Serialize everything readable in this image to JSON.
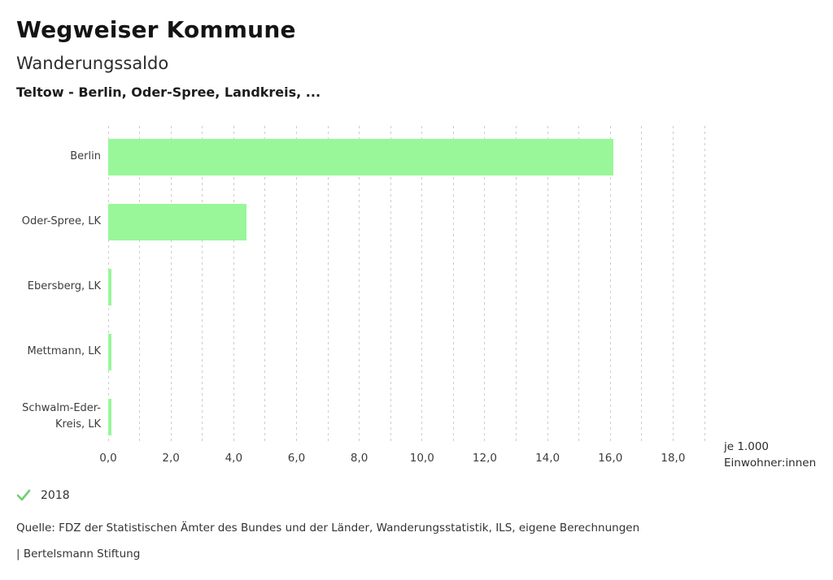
{
  "header": {
    "title": "Wegweiser Kommune",
    "subtitle": "Wanderungssaldo",
    "context": "Teltow - Berlin, Oder-Spree, Landkreis, ..."
  },
  "chart_data": {
    "type": "bar",
    "orientation": "horizontal",
    "title": "Wanderungssaldo",
    "subtitle": "Teltow - Berlin, Oder-Spree, Landkreis, ...",
    "categories": [
      "Berlin",
      "Oder-Spree, LK",
      "Ebersberg, LK",
      "Mettmann, LK",
      "Schwalm-Eder-Kreis, LK"
    ],
    "values": [
      16.1,
      4.4,
      0.1,
      0.1,
      0.1
    ],
    "series_name": "2018",
    "xlabel_lines": [
      "je 1.000",
      "Einwohner:innen"
    ],
    "xlim": [
      0,
      19
    ],
    "grid_interval": 1,
    "grid_style": "dashed-vertical",
    "xticks": [
      {
        "value": 0,
        "label": "0,0"
      },
      {
        "value": 2,
        "label": "2,0"
      },
      {
        "value": 4,
        "label": "4,0"
      },
      {
        "value": 6,
        "label": "6,0"
      },
      {
        "value": 8,
        "label": "8,0"
      },
      {
        "value": 10,
        "label": "10,0"
      },
      {
        "value": 12,
        "label": "12,0"
      },
      {
        "value": 14,
        "label": "14,0"
      },
      {
        "value": 16,
        "label": "16,0"
      },
      {
        "value": 18,
        "label": "18,0"
      }
    ],
    "bar_color": "#99f699",
    "grid_color": "#cccccc",
    "legend_position": "bottom-left"
  },
  "legend": {
    "year": "2018",
    "check_color": "#6fd06f"
  },
  "footer": {
    "source": "Quelle: FDZ der Statistischen Ämter des Bundes und der Länder, Wanderungsstatistik, ILS, eigene Berechnungen",
    "attribution": "| Bertelsmann Stiftung"
  }
}
